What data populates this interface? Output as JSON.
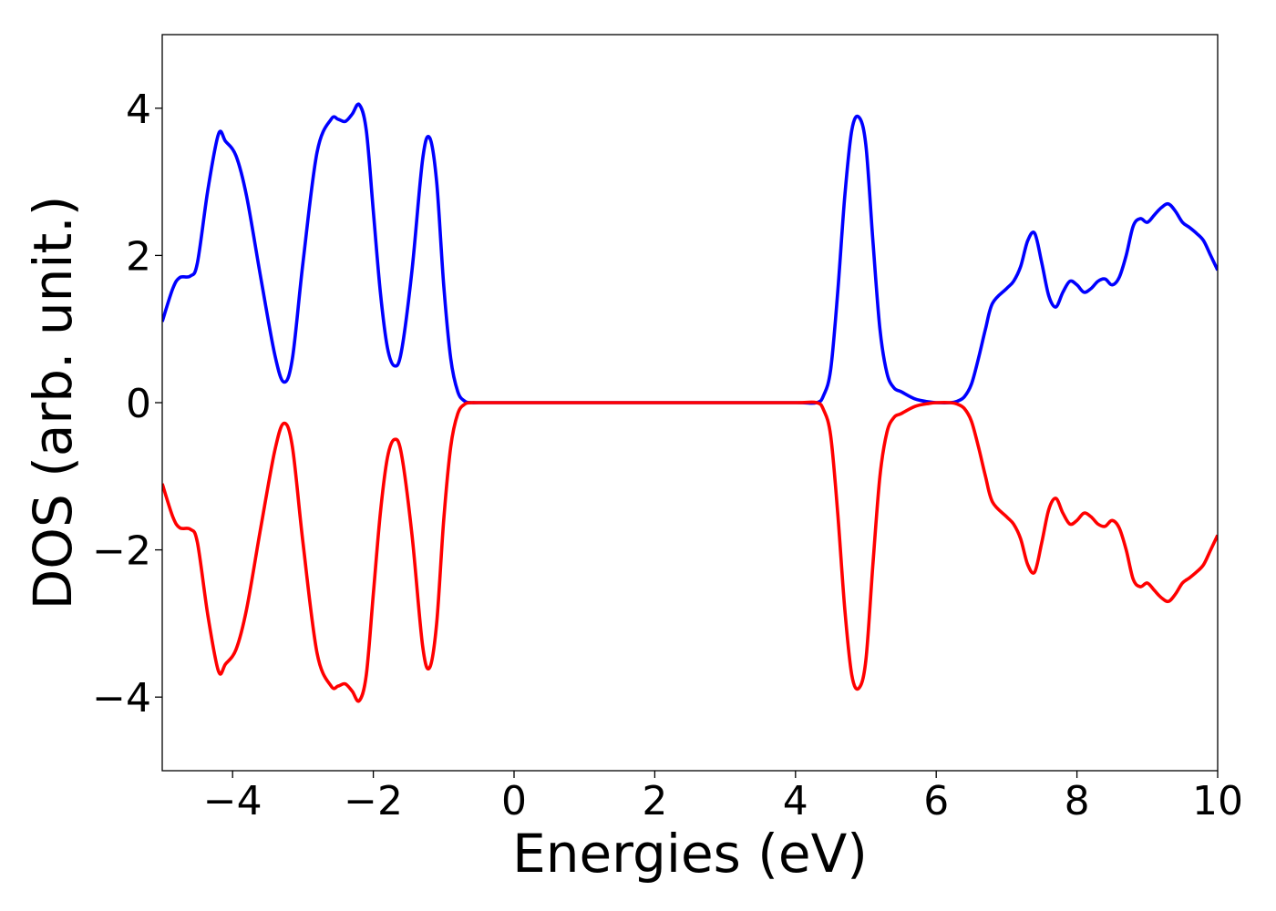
{
  "chart_data": {
    "type": "line",
    "title": "",
    "xlabel": "Energies (eV)",
    "ylabel": "DOS (arb. unit.)",
    "xlim": [
      -5,
      10
    ],
    "ylim": [
      -5,
      5
    ],
    "xticks": [
      -4,
      -2,
      0,
      2,
      4,
      6,
      8,
      10
    ],
    "yticks": [
      -4,
      -2,
      0,
      2,
      4
    ],
    "xtick_labels": [
      "−4",
      "−2",
      "0",
      "2",
      "4",
      "6",
      "8",
      "10"
    ],
    "ytick_labels": [
      "−4",
      "−2",
      "0",
      "2",
      "4"
    ],
    "grid": false,
    "legend": "none",
    "series": [
      {
        "color": "#0000ff",
        "x": [
          -5.0,
          -4.85,
          -4.75,
          -4.6,
          -4.5,
          -4.35,
          -4.2,
          -4.1,
          -3.95,
          -3.8,
          -3.6,
          -3.4,
          -3.27,
          -3.15,
          -3.0,
          -2.8,
          -2.6,
          -2.5,
          -2.4,
          -2.3,
          -2.2,
          -2.1,
          -2.0,
          -1.9,
          -1.8,
          -1.7,
          -1.6,
          -1.45,
          -1.3,
          -1.2,
          -1.1,
          -1.0,
          -0.9,
          -0.8,
          -0.7,
          -0.6,
          -0.5,
          0.0,
          1.0,
          2.0,
          3.0,
          4.0,
          4.3,
          4.4,
          4.5,
          4.6,
          4.7,
          4.8,
          4.9,
          5.0,
          5.1,
          5.2,
          5.3,
          5.4,
          5.5,
          5.7,
          5.9,
          6.0,
          6.2,
          6.3,
          6.4,
          6.5,
          6.6,
          6.7,
          6.8,
          7.0,
          7.1,
          7.2,
          7.3,
          7.4,
          7.5,
          7.6,
          7.7,
          7.8,
          7.9,
          8.0,
          8.1,
          8.2,
          8.3,
          8.4,
          8.5,
          8.6,
          8.7,
          8.8,
          8.9,
          9.0,
          9.1,
          9.2,
          9.3,
          9.4,
          9.5,
          9.6,
          9.7,
          9.8,
          9.9,
          10.0
        ],
        "y": [
          1.1,
          1.55,
          1.7,
          1.72,
          1.9,
          2.9,
          3.65,
          3.55,
          3.35,
          2.8,
          1.7,
          0.65,
          0.28,
          0.6,
          1.9,
          3.4,
          3.85,
          3.85,
          3.82,
          3.92,
          4.05,
          3.7,
          2.6,
          1.5,
          0.75,
          0.5,
          0.7,
          1.8,
          3.3,
          3.6,
          3.0,
          1.6,
          0.6,
          0.15,
          0.02,
          0.0,
          0.0,
          0.0,
          0.0,
          0.0,
          0.0,
          0.0,
          0.0,
          0.1,
          0.45,
          1.5,
          2.8,
          3.7,
          3.88,
          3.5,
          2.2,
          1.0,
          0.4,
          0.2,
          0.15,
          0.05,
          0.01,
          0.0,
          0.0,
          0.02,
          0.08,
          0.25,
          0.6,
          1.0,
          1.35,
          1.55,
          1.65,
          1.85,
          2.2,
          2.3,
          1.9,
          1.45,
          1.3,
          1.5,
          1.65,
          1.6,
          1.5,
          1.55,
          1.65,
          1.68,
          1.6,
          1.7,
          2.0,
          2.4,
          2.5,
          2.45,
          2.55,
          2.65,
          2.7,
          2.6,
          2.45,
          2.38,
          2.3,
          2.2,
          2.0,
          1.8
        ]
      },
      {
        "color": "#ff0000",
        "x": [
          -5.0,
          -4.85,
          -4.75,
          -4.6,
          -4.5,
          -4.35,
          -4.2,
          -4.1,
          -3.95,
          -3.8,
          -3.6,
          -3.4,
          -3.27,
          -3.15,
          -3.0,
          -2.8,
          -2.6,
          -2.5,
          -2.4,
          -2.3,
          -2.2,
          -2.1,
          -2.0,
          -1.9,
          -1.8,
          -1.7,
          -1.6,
          -1.45,
          -1.3,
          -1.2,
          -1.1,
          -1.0,
          -0.9,
          -0.8,
          -0.7,
          -0.6,
          -0.5,
          0.0,
          1.0,
          2.0,
          3.0,
          4.0,
          4.3,
          4.4,
          4.5,
          4.6,
          4.7,
          4.8,
          4.9,
          5.0,
          5.1,
          5.2,
          5.3,
          5.4,
          5.5,
          5.7,
          5.9,
          6.0,
          6.2,
          6.3,
          6.4,
          6.5,
          6.6,
          6.7,
          6.8,
          7.0,
          7.1,
          7.2,
          7.3,
          7.4,
          7.5,
          7.6,
          7.7,
          7.8,
          7.9,
          8.0,
          8.1,
          8.2,
          8.3,
          8.4,
          8.5,
          8.6,
          8.7,
          8.8,
          8.9,
          9.0,
          9.1,
          9.2,
          9.3,
          9.4,
          9.5,
          9.6,
          9.7,
          9.8,
          9.9,
          10.0
        ],
        "y": [
          -1.1,
          -1.55,
          -1.7,
          -1.72,
          -1.9,
          -2.9,
          -3.65,
          -3.55,
          -3.35,
          -2.8,
          -1.7,
          -0.65,
          -0.28,
          -0.6,
          -1.9,
          -3.4,
          -3.85,
          -3.85,
          -3.82,
          -3.92,
          -4.05,
          -3.7,
          -2.6,
          -1.5,
          -0.75,
          -0.5,
          -0.7,
          -1.8,
          -3.3,
          -3.6,
          -3.0,
          -1.6,
          -0.6,
          -0.15,
          -0.02,
          0.0,
          0.0,
          0.0,
          0.0,
          0.0,
          0.0,
          0.0,
          0.0,
          -0.1,
          -0.45,
          -1.5,
          -2.8,
          -3.7,
          -3.88,
          -3.5,
          -2.2,
          -1.0,
          -0.4,
          -0.2,
          -0.15,
          -0.05,
          -0.01,
          0.0,
          0.0,
          -0.02,
          -0.08,
          -0.25,
          -0.6,
          -1.0,
          -1.35,
          -1.55,
          -1.65,
          -1.85,
          -2.2,
          -2.3,
          -1.9,
          -1.45,
          -1.3,
          -1.5,
          -1.65,
          -1.6,
          -1.5,
          -1.55,
          -1.65,
          -1.68,
          -1.6,
          -1.7,
          -2.0,
          -2.4,
          -2.5,
          -2.45,
          -2.55,
          -2.65,
          -2.7,
          -2.6,
          -2.45,
          -2.38,
          -2.3,
          -2.2,
          -2.0,
          -1.8
        ]
      }
    ]
  }
}
